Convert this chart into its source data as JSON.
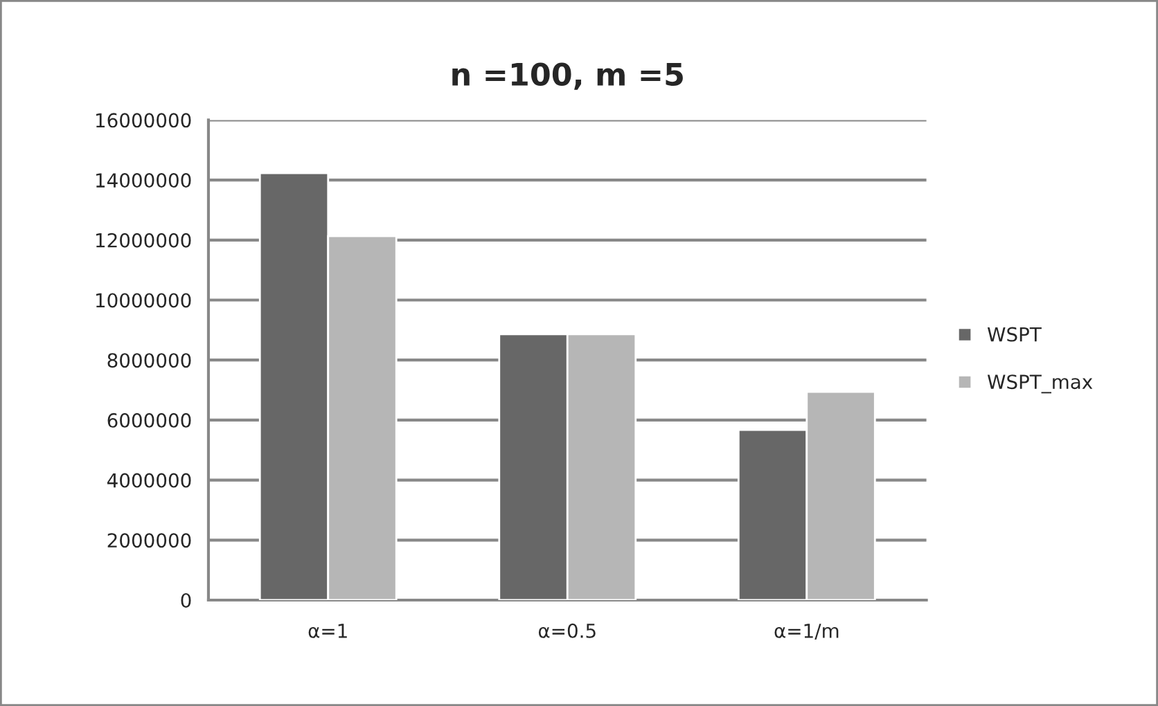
{
  "chart_data": {
    "type": "bar",
    "title": "n =100, m =5",
    "categories": [
      "α=1",
      "α=0.5",
      "α=1/m"
    ],
    "series": [
      {
        "name": "WSPT",
        "color": "#676767",
        "values": [
          14230000,
          8860000,
          5670000
        ]
      },
      {
        "name": "WSPT_max",
        "color": "#b6b6b6",
        "values": [
          12130000,
          8860000,
          6940000
        ]
      }
    ],
    "ylim": [
      0,
      16000000
    ],
    "yticks": [
      0,
      2000000,
      4000000,
      6000000,
      8000000,
      10000000,
      12000000,
      14000000,
      16000000
    ],
    "grid": "y",
    "legend": "right"
  }
}
